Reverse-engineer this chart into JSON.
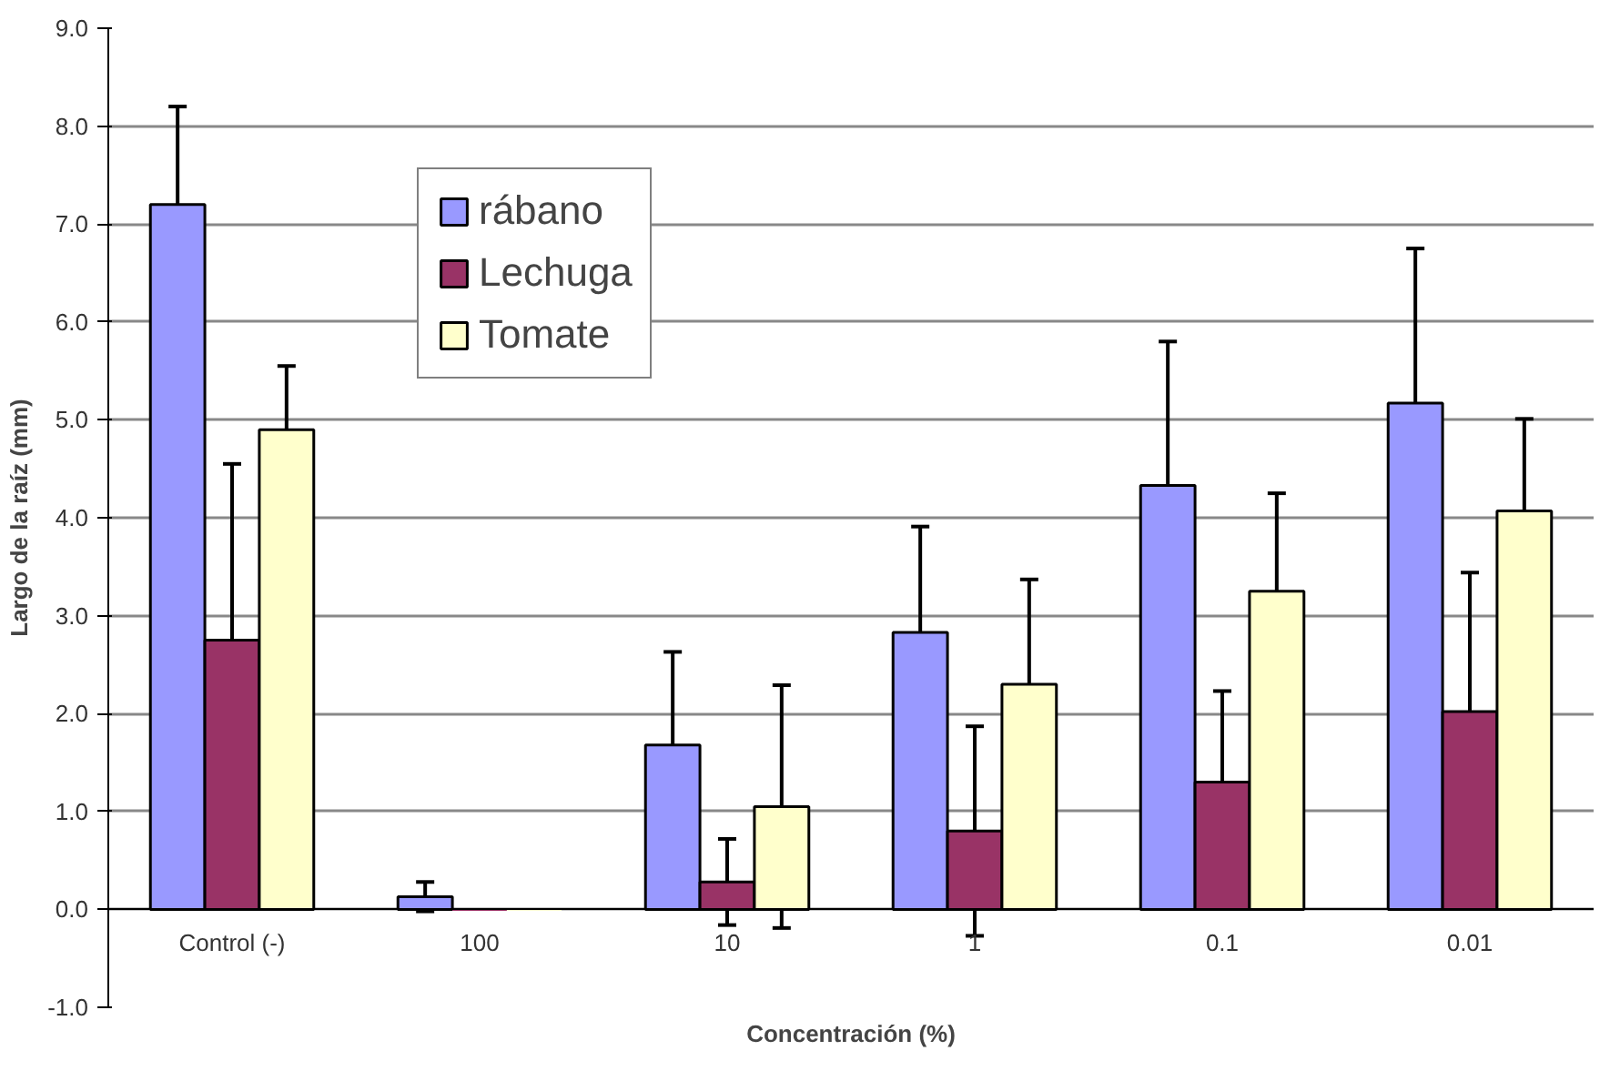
{
  "chart_data": {
    "type": "bar",
    "xlabel": "Concentración (%)",
    "ylabel": "Largo de la raíz (mm)",
    "categories": [
      "Control (-)",
      "100",
      "10",
      "1",
      "0.1",
      "0.01"
    ],
    "series": [
      {
        "name": "rábano",
        "color": "#9999ff",
        "values": [
          7.2,
          0.13,
          1.68,
          2.83,
          4.33,
          5.17
        ],
        "errors": [
          1.0,
          0.15,
          0.95,
          1.08,
          1.47,
          1.58
        ]
      },
      {
        "name": "Lechuga",
        "color": "#993366",
        "values": [
          2.75,
          0,
          0.28,
          0.8,
          1.3,
          2.02
        ],
        "errors": [
          1.8,
          null,
          0.44,
          1.07,
          0.93,
          1.42
        ]
      },
      {
        "name": "Tomate",
        "color": "#ffffcc",
        "values": [
          4.9,
          0,
          1.05,
          2.3,
          3.25,
          4.07
        ],
        "errors": [
          0.65,
          null,
          1.24,
          1.07,
          1.0,
          0.94
        ]
      }
    ],
    "ylim": [
      -1.0,
      9.0
    ],
    "yticks": [
      {
        "value": -1,
        "label": "-1.0"
      },
      {
        "value": 0,
        "label": "0.0"
      },
      {
        "value": 1,
        "label": "1.0"
      },
      {
        "value": 2,
        "label": "2.0"
      },
      {
        "value": 3,
        "label": "3.0"
      },
      {
        "value": 4,
        "label": "4.0"
      },
      {
        "value": 5,
        "label": "5.0"
      },
      {
        "value": 6,
        "label": "6.0"
      },
      {
        "value": 7,
        "label": "7.0"
      },
      {
        "value": 8,
        "label": "8.0"
      },
      {
        "value": 9,
        "label": "9.0"
      }
    ],
    "grid": "y",
    "legend": "top left"
  }
}
